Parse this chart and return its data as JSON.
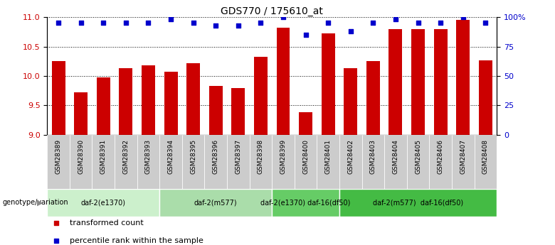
{
  "title": "GDS770 / 175610_at",
  "categories": [
    "GSM28389",
    "GSM28390",
    "GSM28391",
    "GSM28392",
    "GSM28393",
    "GSM28394",
    "GSM28395",
    "GSM28396",
    "GSM28397",
    "GSM28398",
    "GSM28399",
    "GSM28400",
    "GSM28401",
    "GSM28402",
    "GSM28403",
    "GSM28404",
    "GSM28405",
    "GSM28406",
    "GSM28407",
    "GSM28408"
  ],
  "bar_values": [
    10.25,
    9.72,
    9.97,
    10.13,
    10.18,
    10.07,
    10.22,
    9.83,
    9.8,
    10.33,
    10.82,
    9.38,
    10.73,
    10.13,
    10.25,
    10.8,
    10.8,
    10.8,
    10.95,
    10.27
  ],
  "dot_values": [
    95,
    95,
    95,
    95,
    95,
    98,
    95,
    93,
    93,
    95,
    100,
    85,
    95,
    88,
    95,
    98,
    95,
    95,
    100,
    95
  ],
  "bar_color": "#cc0000",
  "dot_color": "#0000cc",
  "ylim_left": [
    9.0,
    11.0
  ],
  "ylim_right": [
    0,
    100
  ],
  "yticks_left": [
    9.0,
    9.5,
    10.0,
    10.5,
    11.0
  ],
  "yticks_right": [
    0,
    25,
    50,
    75,
    100
  ],
  "ytick_labels_right": [
    "0",
    "25",
    "50",
    "75",
    "100%"
  ],
  "groups": [
    {
      "label": "daf-2(e1370)",
      "start": 0,
      "end": 5,
      "color": "#ccf0cc"
    },
    {
      "label": "daf-2(m577)",
      "start": 5,
      "end": 10,
      "color": "#aaddaa"
    },
    {
      "label": "daf-2(e1370) daf-16(df50)",
      "start": 10,
      "end": 13,
      "color": "#66cc66"
    },
    {
      "label": "daf-2(m577)  daf-16(df50)",
      "start": 13,
      "end": 20,
      "color": "#44bb44"
    }
  ],
  "genotype_label": "genotype/variation",
  "legend_items": [
    {
      "label": "transformed count",
      "color": "#cc0000"
    },
    {
      "label": "percentile rank within the sample",
      "color": "#0000cc"
    }
  ],
  "background_color": "#ffffff",
  "label_box_color": "#cccccc",
  "n_bars": 20
}
